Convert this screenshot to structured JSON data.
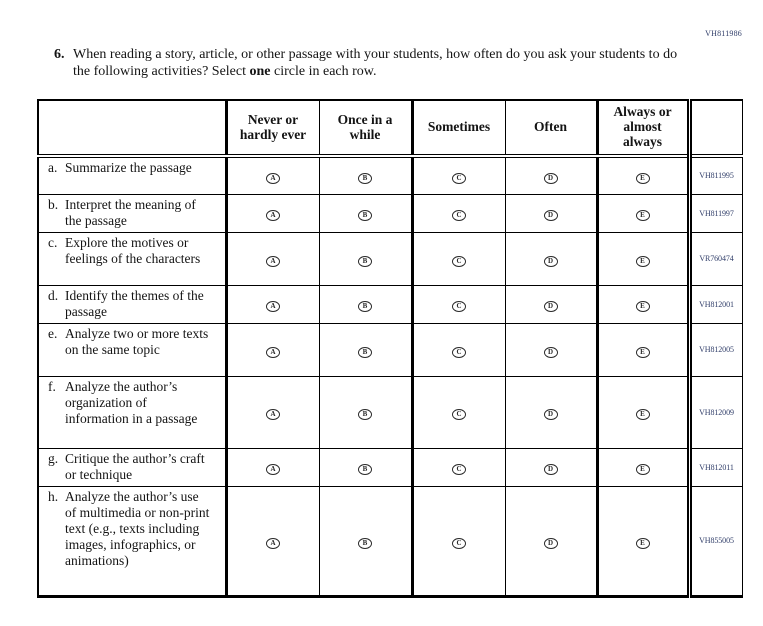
{
  "page_code": "VH811986",
  "question": {
    "number": "6.",
    "text_before": "When reading a story, article, or other passage with your students, how often do you ask your students to do the following activities? Select ",
    "text_bold": "one",
    "text_after": " circle in each row."
  },
  "table": {
    "column_headers": [
      "",
      "Never or hardly ever",
      "Once in a while",
      "Sometimes",
      "Often",
      "Always or almost always",
      ""
    ],
    "option_letters": [
      "A",
      "B",
      "C",
      "D",
      "E"
    ],
    "rows": [
      {
        "letter": "a.",
        "text": "Summarize the passage",
        "code": "VH811995"
      },
      {
        "letter": "b.",
        "text": "Interpret the meaning of the passage",
        "code": "VH811997"
      },
      {
        "letter": "c.",
        "text": "Explore the motives or feelings of the characters",
        "code": "VR760474"
      },
      {
        "letter": "d.",
        "text": "Identify the themes of the passage",
        "code": "VH812001"
      },
      {
        "letter": "e.",
        "text": "Analyze two or more texts on the same topic",
        "code": "VH812005"
      },
      {
        "letter": "f.",
        "text": "Analyze the author’s organization of information in a passage",
        "code": "VH812009"
      },
      {
        "letter": "g.",
        "text": "Critique the author’s craft or technique",
        "code": "VH812011"
      },
      {
        "letter": "h.",
        "text": "Analyze the author’s use of multimedia or non-print text (e.g., texts including images, infographics, or animations)",
        "code": "VH855005"
      }
    ]
  },
  "colors": {
    "ink": "#141414",
    "border": "#000000",
    "code_ink": "#33406b"
  }
}
